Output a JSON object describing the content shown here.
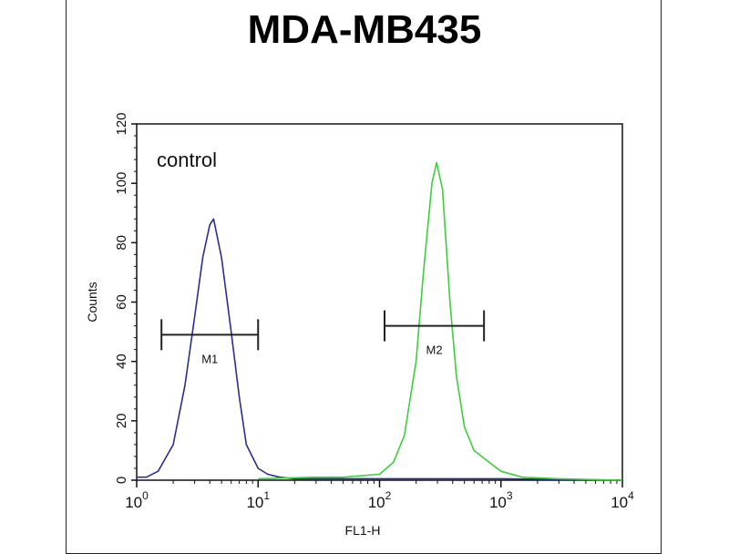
{
  "chart_data": {
    "type": "line",
    "title": "MDA-MB435",
    "xlabel": "FL1-H",
    "ylabel": "Counts",
    "xscale": "log",
    "xlim": [
      1,
      10000
    ],
    "ylim": [
      0,
      120
    ],
    "x_ticks": [
      {
        "base": "10",
        "exp": "0",
        "value": 1
      },
      {
        "base": "10",
        "exp": "1",
        "value": 10
      },
      {
        "base": "10",
        "exp": "2",
        "value": 100
      },
      {
        "base": "10",
        "exp": "3",
        "value": 1000
      },
      {
        "base": "10",
        "exp": "4",
        "value": 10000
      }
    ],
    "y_ticks": [
      "0",
      "20",
      "40",
      "60",
      "80",
      "100",
      "120"
    ],
    "annotation": "control",
    "grid": false,
    "series": [
      {
        "color": "#2a2f8f",
        "points": [
          [
            1,
            1
          ],
          [
            1.2,
            1
          ],
          [
            1.5,
            3
          ],
          [
            2,
            12
          ],
          [
            2.5,
            32
          ],
          [
            3,
            55
          ],
          [
            3.5,
            75
          ],
          [
            4,
            86
          ],
          [
            4.3,
            88
          ],
          [
            5,
            75
          ],
          [
            6,
            50
          ],
          [
            7,
            28
          ],
          [
            8,
            12
          ],
          [
            10,
            4
          ],
          [
            12,
            2
          ],
          [
            15,
            1
          ],
          [
            20,
            0.5
          ],
          [
            100,
            0.5
          ],
          [
            1000,
            0.5
          ],
          [
            10000,
            0
          ]
        ]
      },
      {
        "color": "#3ccf3c",
        "points": [
          [
            10,
            0.5
          ],
          [
            30,
            1
          ],
          [
            50,
            1
          ],
          [
            100,
            2
          ],
          [
            130,
            6
          ],
          [
            160,
            15
          ],
          [
            200,
            40
          ],
          [
            230,
            70
          ],
          [
            270,
            100
          ],
          [
            295,
            107
          ],
          [
            330,
            98
          ],
          [
            380,
            60
          ],
          [
            430,
            35
          ],
          [
            500,
            18
          ],
          [
            600,
            10
          ],
          [
            800,
            6
          ],
          [
            1000,
            3
          ],
          [
            1500,
            1
          ],
          [
            3000,
            0.5
          ],
          [
            10000,
            0
          ]
        ]
      }
    ],
    "markers": [
      {
        "label": "M1",
        "x_start": 1.6,
        "x_end": 10,
        "y": 49
      },
      {
        "label": "M2",
        "x_start": 110,
        "x_end": 725,
        "y": 52
      }
    ]
  }
}
